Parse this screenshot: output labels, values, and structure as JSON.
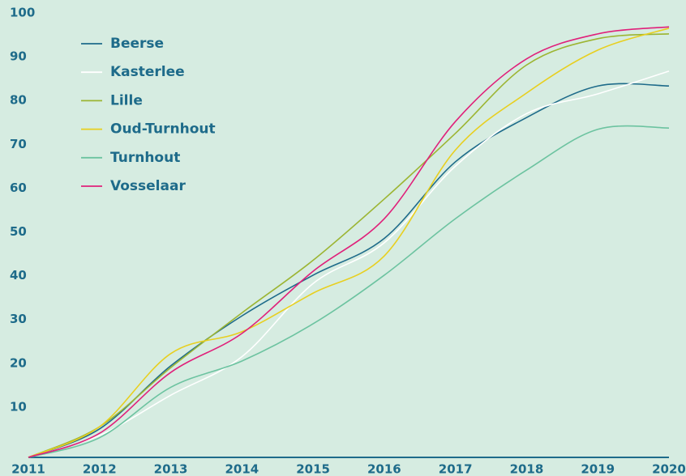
{
  "chart_data": {
    "type": "line",
    "x": [
      2011,
      2012,
      2013,
      2014,
      2015,
      2016,
      2017,
      2018,
      2019,
      2020
    ],
    "xlim": [
      2011,
      2020
    ],
    "xticks": [
      2011,
      2012,
      2013,
      2014,
      2015,
      2016,
      2017,
      2018,
      2019,
      2020
    ],
    "ylim": [
      0,
      100
    ],
    "yticks": [
      10,
      20,
      30,
      40,
      50,
      60,
      70,
      80,
      90,
      100
    ],
    "legend": "upper-left",
    "series": [
      {
        "name": "Beerse",
        "color": "#1e6b8a",
        "values": [
          0,
          6.5,
          20.9,
          32.3,
          41.6,
          50,
          67.5,
          77.6,
          84.8,
          84.8
        ]
      },
      {
        "name": "Kasterlee",
        "color": "#ffffff",
        "values": [
          0,
          5,
          14.2,
          23,
          39.7,
          49,
          66.5,
          78.5,
          83,
          88.2
        ]
      },
      {
        "name": "Lille",
        "color": "#9cb533",
        "values": [
          0,
          7,
          20.5,
          33,
          45,
          59,
          74,
          89.6,
          95.6,
          96.7
        ]
      },
      {
        "name": "Oud-Turnhout",
        "color": "#e8cf1f",
        "values": [
          0,
          7,
          23.7,
          28.7,
          37.5,
          46,
          70.2,
          83.2,
          93,
          98
        ]
      },
      {
        "name": "Turnhout",
        "color": "#6cc3a0",
        "values": [
          0,
          4.5,
          16,
          22,
          30.5,
          41.6,
          54.5,
          65.6,
          74.9,
          75.2
        ]
      },
      {
        "name": "Vosselaar",
        "color": "#e0207a",
        "values": [
          0,
          5.5,
          19.4,
          28.3,
          42.5,
          54.5,
          76.7,
          91,
          96.7,
          98.3
        ]
      }
    ]
  }
}
